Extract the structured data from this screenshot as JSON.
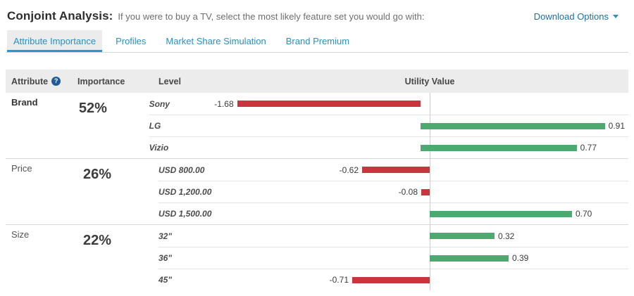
{
  "header": {
    "title": "Conjoint Analysis:",
    "subtitle": "If you were to buy a TV, select the most likely feature set you would go with:",
    "download": {
      "label": "Download Options"
    }
  },
  "tabs": [
    {
      "label": "Attribute Importance",
      "active": true
    },
    {
      "label": "Profiles",
      "active": false
    },
    {
      "label": "Market Share Simulation",
      "active": false
    },
    {
      "label": "Brand Premium",
      "active": false
    }
  ],
  "table": {
    "columns": {
      "attribute": "Attribute",
      "importance": "Importance",
      "level": "Level",
      "utility": "Utility Value"
    },
    "help_icon": "?"
  },
  "sections": [
    {
      "attribute": "Brand",
      "importance": "52%",
      "emphasis": true,
      "levels": [
        {
          "label": "Sony",
          "value": -1.68,
          "display": "-1.68"
        },
        {
          "label": "LG",
          "value": 0.91,
          "display": "0.91"
        },
        {
          "label": "Vizio",
          "value": 0.77,
          "display": "0.77"
        }
      ]
    },
    {
      "attribute": "Price",
      "importance": "26%",
      "emphasis": false,
      "levels": [
        {
          "label": "USD 800.00",
          "value": -0.62,
          "display": "-0.62"
        },
        {
          "label": "USD 1,200.00",
          "value": -0.08,
          "display": "-0.08"
        },
        {
          "label": "USD 1,500.00",
          "value": 0.7,
          "display": "0.70"
        }
      ]
    },
    {
      "attribute": "Size",
      "importance": "22%",
      "emphasis": false,
      "levels": [
        {
          "label": "32\"",
          "value": 0.32,
          "display": "0.32"
        },
        {
          "label": "36\"",
          "value": 0.39,
          "display": "0.39"
        },
        {
          "label": "45\"",
          "value": -0.71,
          "display": "-0.71"
        }
      ]
    }
  ],
  "colors": {
    "positive_bar": "#4caa70",
    "negative_bar": "#c9353d",
    "tab_blue": "#2a8fc1",
    "link_blue": "#1d6fa8"
  },
  "chart_data": {
    "type": "bar",
    "orientation": "horizontal",
    "title": "Conjoint Analysis — Attribute Importance",
    "xlabel": "Utility Value",
    "groups": [
      {
        "attribute": "Brand",
        "importance_pct": 52,
        "levels": [
          "Sony",
          "LG",
          "Vizio"
        ],
        "utilities": [
          -1.68,
          0.91,
          0.77
        ]
      },
      {
        "attribute": "Price",
        "importance_pct": 26,
        "levels": [
          "USD 800.00",
          "USD 1,200.00",
          "USD 1,500.00"
        ],
        "utilities": [
          -0.62,
          -0.08,
          0.7
        ]
      },
      {
        "attribute": "Size",
        "importance_pct": 22,
        "levels": [
          "32\"",
          "36\"",
          "45\""
        ],
        "utilities": [
          0.32,
          0.39,
          -0.71
        ]
      }
    ],
    "value_range": [
      -1.68,
      0.91
    ],
    "negative_color": "#c9353d",
    "positive_color": "#4caa70"
  }
}
